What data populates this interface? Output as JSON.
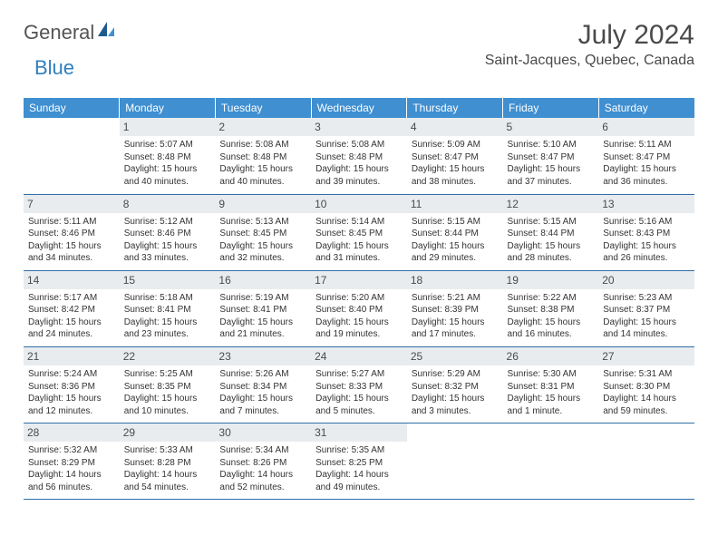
{
  "brand": {
    "general": "General",
    "blue": "Blue"
  },
  "title": "July 2024",
  "location": "Saint-Jacques, Quebec, Canada",
  "colors": {
    "header_bg": "#3f8fd1",
    "header_text": "#ffffff",
    "daynum_bg": "#e9ecef",
    "border": "#2f6fa8",
    "text": "#333333",
    "logo_gray": "#555555",
    "logo_blue": "#2f7fbf",
    "background": "#ffffff"
  },
  "typography": {
    "month_title_fontsize": 30,
    "location_fontsize": 16,
    "weekday_fontsize": 12,
    "daynum_fontsize": 12,
    "body_fontsize": 10,
    "logo_fontsize": 22
  },
  "weekdays": [
    "Sunday",
    "Monday",
    "Tuesday",
    "Wednesday",
    "Thursday",
    "Friday",
    "Saturday"
  ],
  "weeks": [
    [
      {
        "day": "",
        "sunrise": "",
        "sunset": "",
        "daylight": ""
      },
      {
        "day": "1",
        "sunrise": "Sunrise: 5:07 AM",
        "sunset": "Sunset: 8:48 PM",
        "daylight": "Daylight: 15 hours and 40 minutes."
      },
      {
        "day": "2",
        "sunrise": "Sunrise: 5:08 AM",
        "sunset": "Sunset: 8:48 PM",
        "daylight": "Daylight: 15 hours and 40 minutes."
      },
      {
        "day": "3",
        "sunrise": "Sunrise: 5:08 AM",
        "sunset": "Sunset: 8:48 PM",
        "daylight": "Daylight: 15 hours and 39 minutes."
      },
      {
        "day": "4",
        "sunrise": "Sunrise: 5:09 AM",
        "sunset": "Sunset: 8:47 PM",
        "daylight": "Daylight: 15 hours and 38 minutes."
      },
      {
        "day": "5",
        "sunrise": "Sunrise: 5:10 AM",
        "sunset": "Sunset: 8:47 PM",
        "daylight": "Daylight: 15 hours and 37 minutes."
      },
      {
        "day": "6",
        "sunrise": "Sunrise: 5:11 AM",
        "sunset": "Sunset: 8:47 PM",
        "daylight": "Daylight: 15 hours and 36 minutes."
      }
    ],
    [
      {
        "day": "7",
        "sunrise": "Sunrise: 5:11 AM",
        "sunset": "Sunset: 8:46 PM",
        "daylight": "Daylight: 15 hours and 34 minutes."
      },
      {
        "day": "8",
        "sunrise": "Sunrise: 5:12 AM",
        "sunset": "Sunset: 8:46 PM",
        "daylight": "Daylight: 15 hours and 33 minutes."
      },
      {
        "day": "9",
        "sunrise": "Sunrise: 5:13 AM",
        "sunset": "Sunset: 8:45 PM",
        "daylight": "Daylight: 15 hours and 32 minutes."
      },
      {
        "day": "10",
        "sunrise": "Sunrise: 5:14 AM",
        "sunset": "Sunset: 8:45 PM",
        "daylight": "Daylight: 15 hours and 31 minutes."
      },
      {
        "day": "11",
        "sunrise": "Sunrise: 5:15 AM",
        "sunset": "Sunset: 8:44 PM",
        "daylight": "Daylight: 15 hours and 29 minutes."
      },
      {
        "day": "12",
        "sunrise": "Sunrise: 5:15 AM",
        "sunset": "Sunset: 8:44 PM",
        "daylight": "Daylight: 15 hours and 28 minutes."
      },
      {
        "day": "13",
        "sunrise": "Sunrise: 5:16 AM",
        "sunset": "Sunset: 8:43 PM",
        "daylight": "Daylight: 15 hours and 26 minutes."
      }
    ],
    [
      {
        "day": "14",
        "sunrise": "Sunrise: 5:17 AM",
        "sunset": "Sunset: 8:42 PM",
        "daylight": "Daylight: 15 hours and 24 minutes."
      },
      {
        "day": "15",
        "sunrise": "Sunrise: 5:18 AM",
        "sunset": "Sunset: 8:41 PM",
        "daylight": "Daylight: 15 hours and 23 minutes."
      },
      {
        "day": "16",
        "sunrise": "Sunrise: 5:19 AM",
        "sunset": "Sunset: 8:41 PM",
        "daylight": "Daylight: 15 hours and 21 minutes."
      },
      {
        "day": "17",
        "sunrise": "Sunrise: 5:20 AM",
        "sunset": "Sunset: 8:40 PM",
        "daylight": "Daylight: 15 hours and 19 minutes."
      },
      {
        "day": "18",
        "sunrise": "Sunrise: 5:21 AM",
        "sunset": "Sunset: 8:39 PM",
        "daylight": "Daylight: 15 hours and 17 minutes."
      },
      {
        "day": "19",
        "sunrise": "Sunrise: 5:22 AM",
        "sunset": "Sunset: 8:38 PM",
        "daylight": "Daylight: 15 hours and 16 minutes."
      },
      {
        "day": "20",
        "sunrise": "Sunrise: 5:23 AM",
        "sunset": "Sunset: 8:37 PM",
        "daylight": "Daylight: 15 hours and 14 minutes."
      }
    ],
    [
      {
        "day": "21",
        "sunrise": "Sunrise: 5:24 AM",
        "sunset": "Sunset: 8:36 PM",
        "daylight": "Daylight: 15 hours and 12 minutes."
      },
      {
        "day": "22",
        "sunrise": "Sunrise: 5:25 AM",
        "sunset": "Sunset: 8:35 PM",
        "daylight": "Daylight: 15 hours and 10 minutes."
      },
      {
        "day": "23",
        "sunrise": "Sunrise: 5:26 AM",
        "sunset": "Sunset: 8:34 PM",
        "daylight": "Daylight: 15 hours and 7 minutes."
      },
      {
        "day": "24",
        "sunrise": "Sunrise: 5:27 AM",
        "sunset": "Sunset: 8:33 PM",
        "daylight": "Daylight: 15 hours and 5 minutes."
      },
      {
        "day": "25",
        "sunrise": "Sunrise: 5:29 AM",
        "sunset": "Sunset: 8:32 PM",
        "daylight": "Daylight: 15 hours and 3 minutes."
      },
      {
        "day": "26",
        "sunrise": "Sunrise: 5:30 AM",
        "sunset": "Sunset: 8:31 PM",
        "daylight": "Daylight: 15 hours and 1 minute."
      },
      {
        "day": "27",
        "sunrise": "Sunrise: 5:31 AM",
        "sunset": "Sunset: 8:30 PM",
        "daylight": "Daylight: 14 hours and 59 minutes."
      }
    ],
    [
      {
        "day": "28",
        "sunrise": "Sunrise: 5:32 AM",
        "sunset": "Sunset: 8:29 PM",
        "daylight": "Daylight: 14 hours and 56 minutes."
      },
      {
        "day": "29",
        "sunrise": "Sunrise: 5:33 AM",
        "sunset": "Sunset: 8:28 PM",
        "daylight": "Daylight: 14 hours and 54 minutes."
      },
      {
        "day": "30",
        "sunrise": "Sunrise: 5:34 AM",
        "sunset": "Sunset: 8:26 PM",
        "daylight": "Daylight: 14 hours and 52 minutes."
      },
      {
        "day": "31",
        "sunrise": "Sunrise: 5:35 AM",
        "sunset": "Sunset: 8:25 PM",
        "daylight": "Daylight: 14 hours and 49 minutes."
      },
      {
        "day": "",
        "sunrise": "",
        "sunset": "",
        "daylight": ""
      },
      {
        "day": "",
        "sunrise": "",
        "sunset": "",
        "daylight": ""
      },
      {
        "day": "",
        "sunrise": "",
        "sunset": "",
        "daylight": ""
      }
    ]
  ]
}
